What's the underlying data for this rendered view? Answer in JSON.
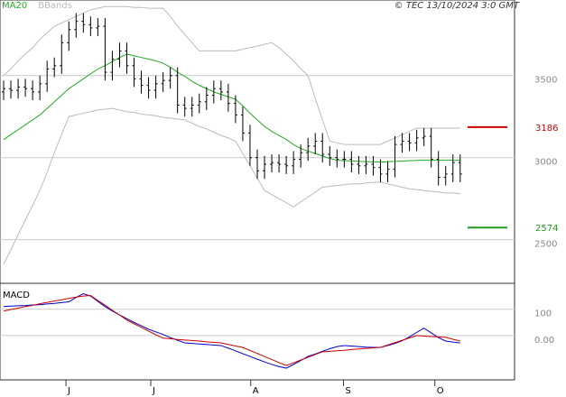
{
  "credit": "© TEC 13/10/2024 3:0 GMT",
  "chart_data": [
    {
      "type": "ohlc",
      "xlim": [
        0,
        71
      ],
      "xticks": [
        {
          "value": 9.1,
          "label": "J"
        },
        {
          "value": 20.8,
          "label": "J"
        },
        {
          "value": 34.6,
          "label": "A"
        },
        {
          "value": 47.4,
          "label": "S"
        },
        {
          "value": 60,
          "label": "O"
        }
      ],
      "ylim": [
        2240,
        3960
      ],
      "yticks": [
        2500,
        3000,
        3500
      ],
      "grid": true,
      "color": "#000000",
      "open": [
        3400,
        3420,
        3410,
        3430,
        3420,
        3400,
        3450,
        3540,
        3560,
        3700,
        3780,
        3830,
        3810,
        3790,
        3800,
        3520,
        3600,
        3650,
        3560,
        3480,
        3440,
        3410,
        3450,
        3470,
        3500,
        3320,
        3300,
        3320,
        3340,
        3380,
        3420,
        3400,
        3330,
        3260,
        3150,
        3000,
        2920,
        2960,
        2970,
        2960,
        2950,
        2990,
        3030,
        3070,
        3100,
        3020,
        3000,
        2990,
        2990,
        2960,
        2950,
        2960,
        2940,
        2900,
        2930,
        3080,
        3100,
        3090,
        3120,
        3130,
        2990,
        2880,
        2900,
        2970
      ],
      "high": [
        3470,
        3470,
        3480,
        3480,
        3470,
        3500,
        3590,
        3610,
        3750,
        3830,
        3880,
        3880,
        3860,
        3850,
        3850,
        3650,
        3700,
        3700,
        3610,
        3530,
        3490,
        3500,
        3520,
        3550,
        3550,
        3370,
        3370,
        3390,
        3430,
        3470,
        3470,
        3450,
        3380,
        3310,
        3200,
        3050,
        3010,
        3020,
        3020,
        3010,
        3040,
        3080,
        3120,
        3150,
        3150,
        3070,
        3050,
        3040,
        3040,
        3010,
        3010,
        3010,
        2990,
        2980,
        3130,
        3150,
        3150,
        3170,
        3180,
        3180,
        3040,
        2950,
        3020,
        3020
      ],
      "low": [
        3350,
        3360,
        3360,
        3370,
        3350,
        3350,
        3400,
        3490,
        3510,
        3650,
        3730,
        3760,
        3740,
        3740,
        3470,
        3470,
        3550,
        3510,
        3430,
        3390,
        3360,
        3360,
        3400,
        3420,
        3270,
        3250,
        3250,
        3270,
        3290,
        3330,
        3350,
        3280,
        3210,
        3100,
        2950,
        2870,
        2870,
        2910,
        2910,
        2900,
        2900,
        2940,
        2980,
        3020,
        2970,
        2950,
        2940,
        2940,
        2910,
        2900,
        2900,
        2890,
        2850,
        2850,
        2880,
        3030,
        3040,
        3040,
        3070,
        2940,
        2830,
        2830,
        2850,
        2850
      ],
      "close": [
        3420,
        3410,
        3430,
        3420,
        3400,
        3450,
        3540,
        3560,
        3700,
        3780,
        3830,
        3810,
        3790,
        3800,
        3520,
        3600,
        3650,
        3560,
        3480,
        3440,
        3410,
        3450,
        3470,
        3500,
        3320,
        3300,
        3320,
        3340,
        3380,
        3420,
        3400,
        3330,
        3260,
        3150,
        3000,
        2920,
        2960,
        2970,
        2960,
        2950,
        2990,
        3030,
        3070,
        3100,
        3020,
        3000,
        2990,
        2990,
        2960,
        2950,
        2960,
        2940,
        2900,
        2930,
        3080,
        3100,
        3090,
        3120,
        3130,
        2990,
        2880,
        2900,
        2970,
        2900
      ],
      "series": [
        {
          "name": "MA20",
          "color": "#22aa22",
          "values": [
            3110,
            3140,
            3170,
            3200,
            3230,
            3260,
            3300,
            3340,
            3380,
            3420,
            3450,
            3480,
            3510,
            3540,
            3560,
            3585,
            3610,
            3630,
            3620,
            3610,
            3600,
            3590,
            3575,
            3550,
            3520,
            3495,
            3465,
            3440,
            3420,
            3400,
            3385,
            3370,
            3356,
            3315,
            3270,
            3230,
            3190,
            3160,
            3135,
            3110,
            3080,
            3055,
            3040,
            3025,
            3010,
            2995,
            2984,
            2982,
            2980,
            2978,
            2976,
            2974,
            2973,
            2975,
            2977,
            2979,
            2981,
            2983,
            2984,
            2984,
            2984,
            2984,
            2984,
            2984
          ]
        },
        {
          "name": "BBands",
          "color": "#bbbbbb",
          "upper": [
            3500,
            3540,
            3590,
            3630,
            3670,
            3720,
            3760,
            3800,
            3820,
            3840,
            3860,
            3880,
            3900,
            3910,
            3920,
            3920,
            3920,
            3920,
            3915,
            3915,
            3910,
            3910,
            3910,
            3860,
            3800,
            3750,
            3700,
            3650,
            3650,
            3650,
            3650,
            3650,
            3650,
            3660,
            3670,
            3680,
            3690,
            3700,
            3670,
            3630,
            3590,
            3540,
            3500,
            3360,
            3230,
            3100,
            3090,
            3080,
            3080,
            3080,
            3080,
            3080,
            3080,
            3100,
            3120,
            3140,
            3160,
            3180,
            3180,
            3180,
            3180,
            3180,
            3180,
            3180
          ],
          "lower": [
            2350,
            2440,
            2530,
            2620,
            2710,
            2800,
            2910,
            3030,
            3140,
            3250,
            3260,
            3270,
            3280,
            3290,
            3295,
            3300,
            3290,
            3280,
            3275,
            3265,
            3260,
            3255,
            3245,
            3240,
            3235,
            3230,
            3210,
            3190,
            3175,
            3155,
            3135,
            3120,
            3100,
            3025,
            2950,
            2875,
            2800,
            2775,
            2750,
            2725,
            2700,
            2730,
            2760,
            2790,
            2820,
            2825,
            2830,
            2835,
            2840,
            2840,
            2845,
            2850,
            2850,
            2840,
            2830,
            2820,
            2810,
            2805,
            2800,
            2795,
            2790,
            2785,
            2785,
            2780
          ]
        }
      ],
      "levels": [
        {
          "value": 3186,
          "color": "#cc0000"
        },
        {
          "value": 2574,
          "color": "#229922"
        }
      ]
    },
    {
      "type": "line",
      "title": "MACD",
      "ylim": [
        -165,
        195
      ],
      "yticks": [
        100,
        {
          "value": 0,
          "label": "0.00"
        }
      ],
      "grid": true,
      "series": [
        {
          "color": "#0000cc",
          "values": [
            110,
            112,
            113,
            114,
            116,
            117,
            120,
            122,
            125,
            128,
            145,
            159,
            150,
            130,
            110,
            93,
            78,
            64,
            50,
            37,
            24,
            14,
            4,
            -8,
            -18,
            -28,
            -30,
            -32,
            -34,
            -36,
            -38,
            -48,
            -58,
            -69,
            -79,
            -90,
            -100,
            -110,
            -118,
            -124,
            -110,
            -95,
            -79,
            -70,
            -60,
            -50,
            -42,
            -38,
            -40,
            -42,
            -44,
            -45,
            -45,
            -38,
            -30,
            -20,
            -5,
            12,
            28,
            10,
            -8,
            -21,
            -25,
            -28
          ]
        },
        {
          "color": "#cc0000",
          "values": [
            93,
            99,
            104,
            110,
            115,
            121,
            126,
            131,
            136,
            141,
            146,
            150,
            152,
            133,
            115,
            96,
            78,
            59,
            45,
            31,
            17,
            3,
            -10,
            -12,
            -15,
            -17,
            -19,
            -21,
            -24,
            -26,
            -28,
            -34,
            -40,
            -45,
            -57,
            -68,
            -80,
            -91,
            -103,
            -114,
            -104,
            -93,
            -83,
            -72,
            -62,
            -60,
            -58,
            -56,
            -53,
            -51,
            -49,
            -47,
            -45,
            -36,
            -27,
            -18,
            -9,
            0,
            -2,
            -4,
            -5,
            -7,
            -14,
            -21
          ]
        }
      ]
    }
  ]
}
